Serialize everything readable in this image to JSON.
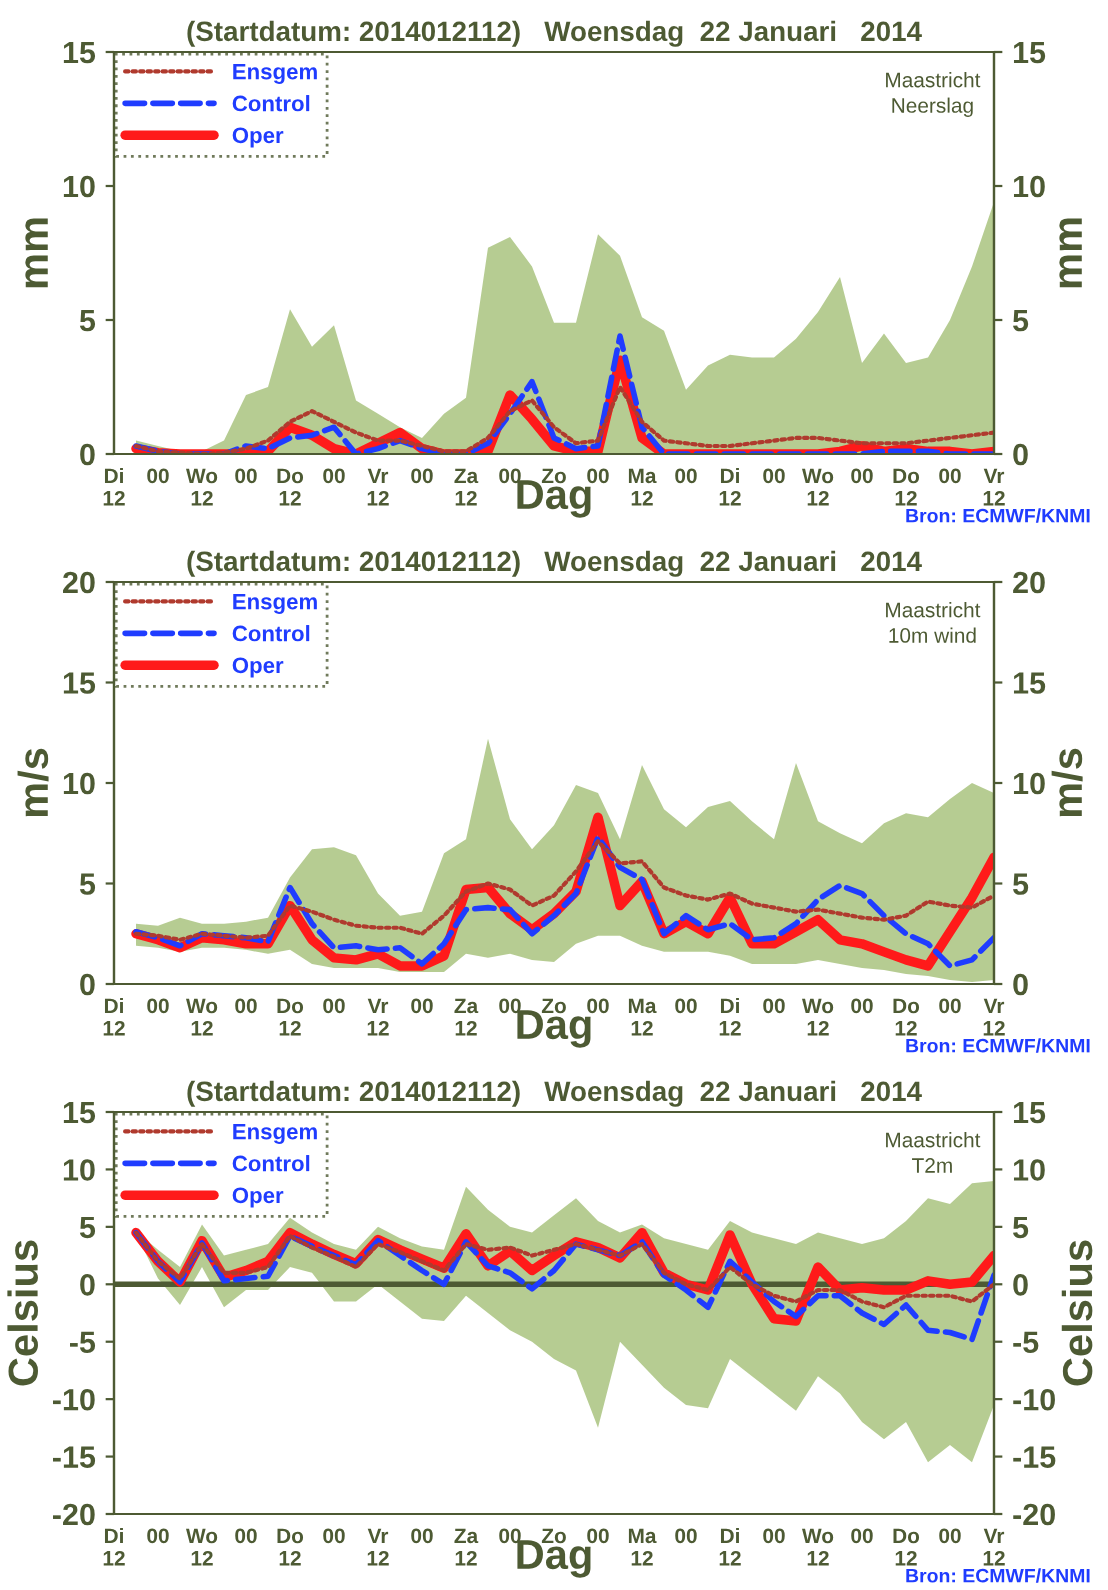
{
  "chart_data": [
    {
      "type": "line",
      "title": "(Startdatum: 2014012112)   Woensdag  22 Januari   2014",
      "xlabel": "Dag",
      "ylabel": "mm",
      "y2label": "mm",
      "annotations": [
        "Maastricht\nNeerslag",
        "Bron: ECMWF/KNMI"
      ],
      "categories": [
        "Di\n12",
        null,
        "00",
        null,
        "Wo\n12",
        null,
        "00",
        null,
        "Do\n12",
        null,
        "00",
        null,
        "Vr\n12",
        null,
        "00",
        null,
        "Za\n12",
        null,
        "00",
        null,
        "Zo",
        null,
        "00",
        null,
        "Ma\n12",
        null,
        "00",
        null,
        "Di\n12",
        null,
        "00",
        null,
        "Wo\n12",
        null,
        "00",
        null,
        "Do\n12",
        null,
        "00",
        null,
        "Vr\n12"
      ],
      "ylim": [
        0,
        15
      ],
      "yticks": [
        0,
        5,
        10,
        15
      ],
      "y2lim": [
        0,
        15
      ],
      "y2ticks": [
        0,
        5,
        10,
        15
      ],
      "legend": "top left",
      "series": [
        {
          "name": "Ensgem",
          "color": "#b03a2e",
          "line_style": "dotted",
          "values": [
            null,
            0.3,
            0.1,
            0.05,
            0,
            0.05,
            0.2,
            0.5,
            1.2,
            1.6,
            1.2,
            0.8,
            0.5,
            0.5,
            0.3,
            0.1,
            0.1,
            0.6,
            1.6,
            2.0,
            1.0,
            0.4,
            0.5,
            2.5,
            1.2,
            0.5,
            0.4,
            0.3,
            0.3,
            0.4,
            0.5,
            0.6,
            0.6,
            0.5,
            0.4,
            0.4,
            0.4,
            0.5,
            0.6,
            0.7,
            0.8
          ],
          "lower": [
            null,
            0,
            0,
            0,
            0,
            0,
            0,
            0,
            0,
            0,
            0,
            0,
            0,
            0,
            0,
            0,
            0,
            0,
            0,
            0,
            0,
            0,
            0,
            0,
            0,
            0,
            0,
            0,
            0,
            0,
            0,
            0,
            0,
            0,
            0,
            0,
            0,
            0,
            0,
            0,
            0
          ],
          "upper": [
            null,
            0.5,
            0.3,
            0.1,
            0.1,
            0.5,
            2.2,
            2.5,
            5.4,
            4.0,
            4.8,
            2.0,
            1.5,
            1.0,
            0.6,
            1.5,
            2.1,
            7.7,
            8.1,
            7.0,
            4.9,
            4.9,
            8.2,
            7.4,
            5.1,
            4.6,
            2.4,
            3.3,
            3.7,
            3.6,
            3.6,
            4.3,
            5.3,
            6.6,
            3.4,
            4.5,
            3.4,
            3.6,
            5.0,
            7.0,
            9.4
          ]
        },
        {
          "name": "Control",
          "color": "#1f3cff",
          "line_style": "dashed",
          "values": [
            null,
            0.3,
            0.1,
            0,
            0,
            0,
            0.3,
            0.2,
            0.6,
            0.7,
            1.0,
            0,
            0.2,
            0.5,
            0.2,
            0,
            0,
            0.4,
            1.5,
            2.7,
            0.6,
            0.2,
            0.3,
            4.4,
            1.0,
            0,
            0,
            0,
            0,
            0,
            0,
            0,
            0,
            0,
            0,
            0.1,
            0.1,
            0.1,
            0,
            0,
            0
          ]
        },
        {
          "name": "Oper",
          "color": "#ff1a1a",
          "line_style": "solid",
          "values": [
            null,
            0.2,
            0.05,
            0,
            0,
            0,
            0,
            0.1,
            1.0,
            0.7,
            0.2,
            0,
            0.4,
            0.8,
            0.2,
            0,
            0,
            0.1,
            2.2,
            1.3,
            0.3,
            0.1,
            0.1,
            3.5,
            0.6,
            0,
            0,
            0,
            0,
            0,
            0,
            0,
            0,
            0.1,
            0.3,
            0.1,
            0.2,
            0.1,
            0.1,
            0,
            0.1
          ]
        }
      ]
    },
    {
      "type": "line",
      "title": "(Startdatum: 2014012112)   Woensdag  22 Januari   2014",
      "xlabel": "Dag",
      "ylabel": "m/s",
      "y2label": "m/s",
      "annotations": [
        "Maastricht\n10m wind",
        "Bron: ECMWF/KNMI"
      ],
      "categories": [
        "Di\n12",
        null,
        "00",
        null,
        "Wo\n12",
        null,
        "00",
        null,
        "Do\n12",
        null,
        "00",
        null,
        "Vr\n12",
        null,
        "00",
        null,
        "Za\n12",
        null,
        "00",
        null,
        "Zo",
        null,
        "00",
        null,
        "Ma\n12",
        null,
        "00",
        null,
        "Di\n12",
        null,
        "00",
        null,
        "Wo\n12",
        null,
        "00",
        null,
        "Do\n12",
        null,
        "00",
        null,
        "Vr\n12"
      ],
      "ylim": [
        0,
        20
      ],
      "yticks": [
        0,
        5,
        10,
        15,
        20
      ],
      "y2lim": [
        0,
        20
      ],
      "y2ticks": [
        0,
        5,
        10,
        15,
        20
      ],
      "legend": "top left",
      "series": [
        {
          "name": "Ensgem",
          "color": "#b03a2e",
          "line_style": "dotted",
          "values": [
            null,
            2.5,
            2.4,
            2.2,
            2.5,
            2.4,
            2.3,
            2.4,
            3.9,
            3.6,
            3.2,
            2.9,
            2.8,
            2.8,
            2.5,
            3.4,
            4.6,
            5.0,
            4.7,
            3.9,
            4.4,
            5.6,
            7.1,
            6.0,
            6.1,
            4.8,
            4.4,
            4.2,
            4.5,
            4.0,
            3.8,
            3.6,
            3.7,
            3.5,
            3.3,
            3.2,
            3.4,
            4.1,
            3.9,
            3.8,
            4.4
          ],
          "lower": [
            null,
            1.9,
            1.8,
            1.6,
            1.8,
            1.8,
            1.7,
            1.5,
            1.7,
            1.0,
            0.8,
            0.8,
            0.8,
            0.6,
            0.6,
            0.6,
            1.5,
            1.3,
            1.5,
            1.2,
            1.1,
            2.0,
            2.4,
            2.4,
            1.9,
            1.6,
            1.6,
            1.6,
            1.4,
            1.0,
            1.0,
            1.0,
            1.2,
            1.0,
            0.8,
            0.7,
            0.5,
            0.4,
            0.2,
            0.1,
            0.2
          ],
          "upper": [
            null,
            3.0,
            2.9,
            3.3,
            3.0,
            3.0,
            3.1,
            3.3,
            5.3,
            6.7,
            6.8,
            6.4,
            4.5,
            3.4,
            3.6,
            6.5,
            7.2,
            12.2,
            8.2,
            6.7,
            7.9,
            9.9,
            9.5,
            7.2,
            10.9,
            8.7,
            7.8,
            8.8,
            9.1,
            8.1,
            7.2,
            11.0,
            8.1,
            7.5,
            7.0,
            8.0,
            8.5,
            8.3,
            9.2,
            10.0,
            9.5
          ]
        },
        {
          "name": "Control",
          "color": "#1f3cff",
          "line_style": "dashed",
          "values": [
            null,
            2.6,
            2.3,
            1.9,
            2.5,
            2.4,
            2.3,
            2.1,
            4.8,
            3.0,
            1.8,
            1.9,
            1.7,
            1.8,
            1.0,
            2.0,
            3.7,
            3.8,
            3.7,
            2.5,
            3.4,
            4.5,
            7.3,
            5.8,
            5.2,
            2.5,
            3.4,
            2.7,
            3.0,
            2.2,
            2.3,
            3.0,
            4.2,
            4.9,
            4.5,
            3.4,
            2.5,
            2.0,
            0.9,
            1.2,
            2.3
          ]
        },
        {
          "name": "Oper",
          "color": "#ff1a1a",
          "line_style": "solid",
          "values": [
            null,
            2.5,
            2.2,
            1.8,
            2.3,
            2.2,
            2.0,
            2.0,
            3.9,
            2.2,
            1.3,
            1.2,
            1.5,
            0.9,
            0.9,
            1.4,
            4.7,
            4.8,
            3.5,
            2.7,
            3.5,
            4.6,
            8.3,
            3.9,
            5.1,
            2.5,
            3.1,
            2.5,
            4.3,
            2.0,
            2.0,
            2.6,
            3.2,
            2.2,
            2.0,
            1.6,
            1.2,
            0.9,
            2.6,
            4.3,
            6.3
          ]
        }
      ]
    },
    {
      "type": "line",
      "title": "(Startdatum: 2014012112)   Woensdag  22 Januari   2014",
      "xlabel": "Dag",
      "ylabel": "Celsius",
      "y2label": "Celsius",
      "annotations": [
        "Maastricht\nT2m",
        "Bron: ECMWF/KNMI"
      ],
      "categories": [
        "Di\n12",
        null,
        "00",
        null,
        "Wo\n12",
        null,
        "00",
        null,
        "Do\n12",
        null,
        "00",
        null,
        "Vr\n12",
        null,
        "00",
        null,
        "Za\n12",
        null,
        "00",
        null,
        "Zo",
        null,
        "00",
        null,
        "Ma\n12",
        null,
        "00",
        null,
        "Di\n12",
        null,
        "00",
        null,
        "Wo\n12",
        null,
        "00",
        null,
        "Do\n12",
        null,
        "00",
        null,
        "Vr\n12"
      ],
      "ylim": [
        -20,
        15
      ],
      "yticks": [
        -20,
        -15,
        -10,
        -5,
        0,
        5,
        10,
        15
      ],
      "y2lim": [
        -20,
        15
      ],
      "y2ticks": [
        -20,
        -15,
        -10,
        -5,
        0,
        5,
        10,
        15
      ],
      "legend": "top left",
      "ref_lines": [
        {
          "axis": "y",
          "value": 0,
          "color": "#4d5a33"
        }
      ],
      "series": [
        {
          "name": "Ensgem",
          "color": "#b03a2e",
          "line_style": "dotted",
          "values": [
            null,
            4.5,
            2.0,
            0.5,
            3.5,
            1.0,
            1.0,
            1.5,
            4.2,
            3.2,
            2.4,
            1.5,
            3.5,
            2.8,
            2.0,
            1.2,
            3.5,
            3.0,
            3.2,
            2.5,
            3.0,
            3.5,
            3.0,
            2.5,
            3.5,
            1.0,
            0,
            -0.5,
            1.5,
            0,
            -1.0,
            -1.5,
            -0.5,
            -0.5,
            -1.5,
            -2.0,
            -1.0,
            -1.0,
            -1.0,
            -1.5,
            0
          ],
          "lower": [
            null,
            4.4,
            0.5,
            -1.8,
            1.5,
            -2.0,
            -0.5,
            -0.5,
            1.5,
            1.0,
            -1.5,
            -1.5,
            0,
            -1.5,
            -3.0,
            -3.2,
            -1.0,
            -2.5,
            -4.0,
            -5.0,
            -6.5,
            -7.5,
            -12.5,
            -5.0,
            -7.0,
            -9.0,
            -10.5,
            -10.8,
            -6.5,
            -8.0,
            -9.5,
            -11.0,
            -8.0,
            -9.5,
            -12.0,
            -13.5,
            -12.0,
            -15.5,
            -14.0,
            -15.5,
            -10.5
          ],
          "upper": [
            null,
            4.6,
            3.0,
            1.5,
            5.2,
            2.5,
            3.0,
            3.5,
            5.8,
            4.5,
            3.5,
            3.0,
            5.0,
            4.0,
            3.3,
            3.0,
            8.5,
            6.5,
            5.0,
            4.5,
            6.0,
            7.5,
            5.5,
            4.5,
            5.2,
            4.0,
            3.5,
            3.0,
            5.5,
            4.5,
            4.0,
            3.5,
            4.5,
            4.0,
            3.5,
            4.0,
            5.5,
            7.5,
            7.0,
            8.8,
            9.0
          ]
        },
        {
          "name": "Control",
          "color": "#1f3cff",
          "line_style": "dashed",
          "values": [
            null,
            4.5,
            2.0,
            0.2,
            3.6,
            0.3,
            0.5,
            0.7,
            4.2,
            3.3,
            2.5,
            1.7,
            3.8,
            2.5,
            1.2,
            0,
            3.7,
            1.6,
            1.0,
            -0.4,
            1.2,
            3.5,
            3.0,
            2.5,
            3.7,
            0.8,
            -0.5,
            -2.0,
            2.0,
            0.2,
            -1.5,
            -2.8,
            -1.0,
            -1.0,
            -2.5,
            -3.5,
            -1.8,
            -4.0,
            -4.2,
            -4.8,
            0.8
          ]
        },
        {
          "name": "Oper",
          "color": "#ff1a1a",
          "line_style": "solid",
          "values": [
            null,
            4.5,
            2.0,
            0.2,
            3.8,
            0.6,
            1.2,
            2.0,
            4.5,
            3.5,
            2.6,
            1.8,
            3.9,
            3.0,
            2.2,
            1.4,
            4.4,
            1.6,
            2.9,
            1.2,
            2.5,
            3.7,
            3.2,
            2.3,
            4.5,
            1.0,
            0,
            -0.5,
            4.3,
            0,
            -3.0,
            -3.2,
            1.5,
            -0.5,
            -0.3,
            -0.5,
            -0.5,
            0.3,
            0,
            0.2,
            2.5
          ]
        }
      ]
    }
  ]
}
